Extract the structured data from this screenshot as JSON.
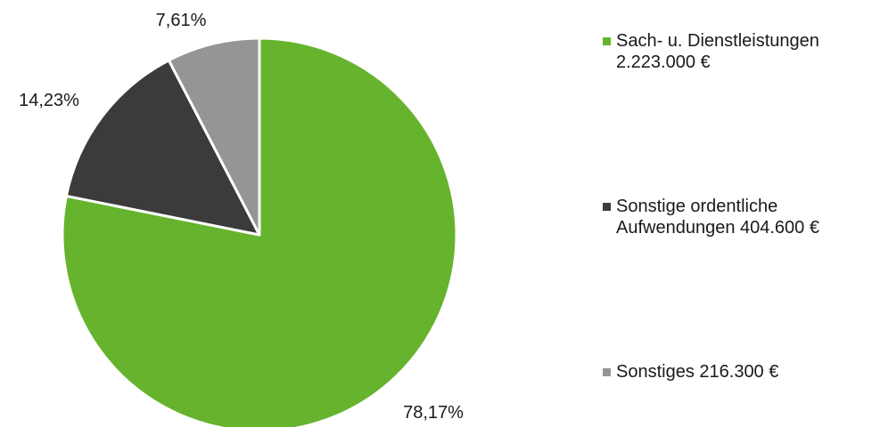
{
  "chart_data": {
    "type": "pie",
    "title": "",
    "categories": [
      "Sach- u. Dienstleistungen 2.223.000 €",
      "Sonstige ordentliche Aufwendungen 404.600 €",
      "Sonstiges 216.300 €"
    ],
    "values": [
      2223000,
      404600,
      216300
    ],
    "percent_labels": [
      "78,17%",
      "14,23%",
      "7,61%"
    ],
    "colors": [
      "#66b32e",
      "#3b3b3b",
      "#959595"
    ],
    "start_angle": "12 o'clock",
    "direction": "clockwise",
    "legend_position": "right",
    "legend": [
      {
        "label": "Sach- u. Dienstleistungen\n2.223.000 €",
        "color": "#66b32e"
      },
      {
        "label": "Sonstige ordentliche\nAufwendungen  404.600 €",
        "color": "#3b3b3b"
      },
      {
        "label": "Sonstiges 216.300 €",
        "color": "#959595"
      }
    ]
  }
}
